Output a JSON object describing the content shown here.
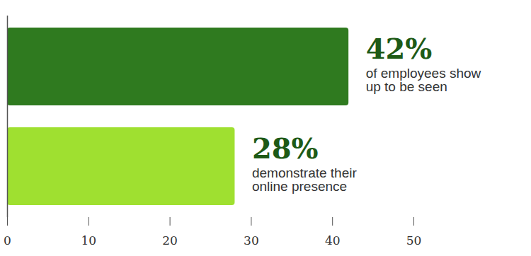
{
  "chart_data": {
    "type": "bar",
    "orientation": "horizontal",
    "categories": [
      "of employees show up to be seen",
      "demonstrate their online presence"
    ],
    "values": [
      42,
      28
    ],
    "value_labels": [
      "42%",
      "28%"
    ],
    "colors": [
      "#2f7a1f",
      "#9fe030"
    ],
    "xlim": [
      0,
      50
    ],
    "xticks": [
      0,
      10,
      20,
      30,
      40,
      50
    ],
    "data_labels": true,
    "tick_labels": "x"
  }
}
